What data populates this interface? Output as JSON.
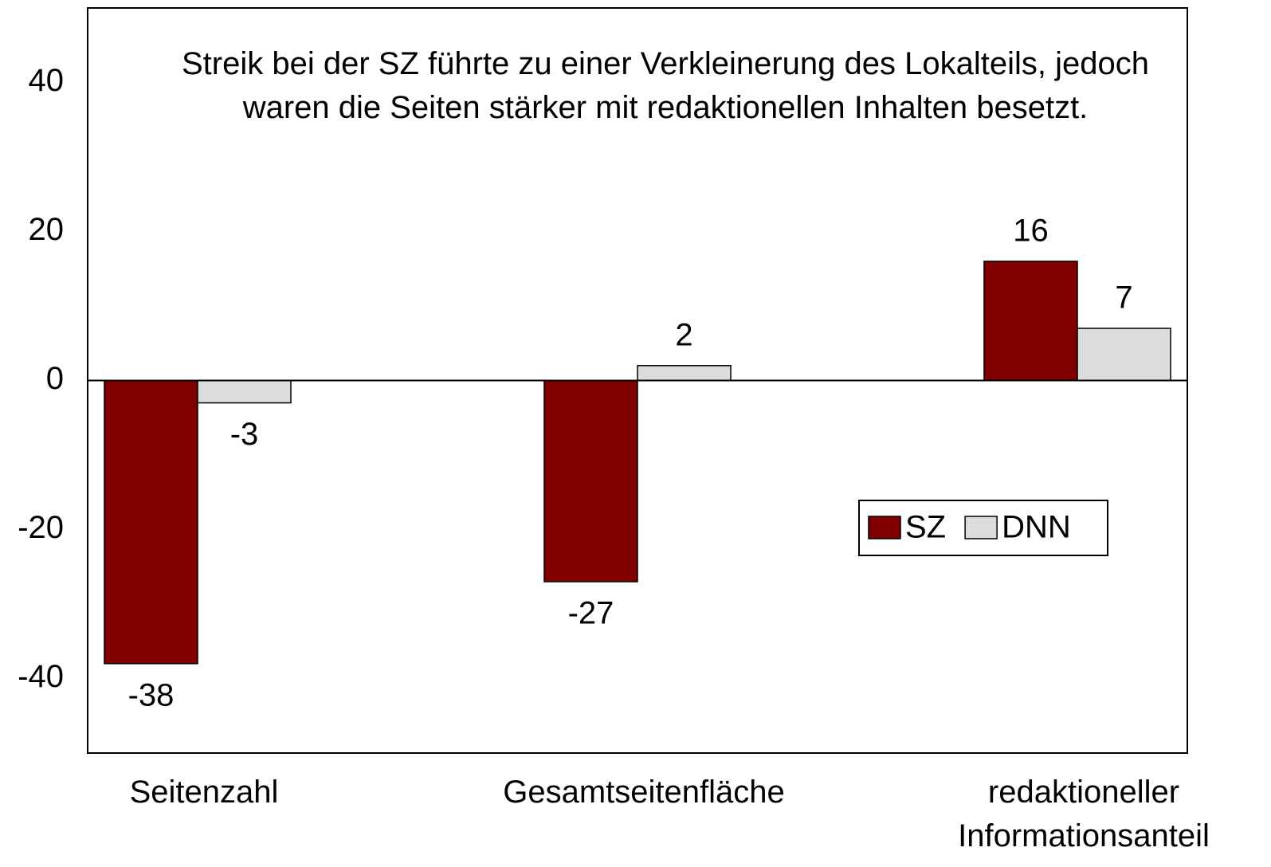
{
  "chart_data": {
    "type": "bar",
    "title": "Streik bei der SZ führte zu einer Verkleinerung des Lokalteils, jedoch waren die Seiten stärker mit redaktionellen Inhalten besetzt.",
    "categories": [
      "Seitenzahl",
      "Gesamtseitenfläche",
      "redaktioneller Informationsanteil"
    ],
    "series": [
      {
        "name": "SZ",
        "color": "#800000",
        "values": [
          -38,
          -27,
          16
        ]
      },
      {
        "name": "DNN",
        "color": "#dcdcdc",
        "values": [
          -3,
          2,
          7
        ]
      }
    ],
    "ylim": [
      -50,
      50
    ],
    "yticks": [
      -40,
      -20,
      0,
      20,
      40
    ],
    "grid": false
  }
}
